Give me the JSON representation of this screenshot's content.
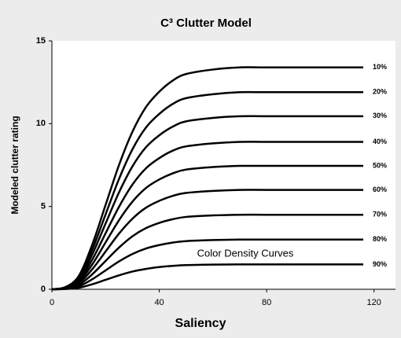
{
  "chart_data": {
    "type": "line",
    "title": "C³ Clutter Model",
    "x_label": "Saliency",
    "y_label": "Modeled clutter rating",
    "annotation": "Color Density Curves",
    "x": [
      0,
      5,
      10,
      15,
      20,
      25,
      30,
      35,
      40,
      45,
      50,
      60,
      70,
      80,
      100,
      116
    ],
    "xlim": [
      0,
      128
    ],
    "xticks": [
      0,
      40,
      80,
      120
    ],
    "ylim": [
      0,
      15
    ],
    "yticks": [
      0,
      5,
      10,
      15
    ],
    "grid": false,
    "series": [
      {
        "name": "10%",
        "color": "#000000",
        "values": [
          0,
          0.13,
          0.8,
          2.68,
          5.09,
          7.5,
          9.51,
          10.99,
          11.93,
          12.6,
          13.0,
          13.27,
          13.4,
          13.4,
          13.4,
          13.4
        ]
      },
      {
        "name": "20%",
        "color": "#000000",
        "values": [
          0,
          0.12,
          0.71,
          2.38,
          4.52,
          6.66,
          8.45,
          9.76,
          10.59,
          11.19,
          11.54,
          11.78,
          11.9,
          11.9,
          11.9,
          11.9
        ]
      },
      {
        "name": "30%",
        "color": "#000000",
        "values": [
          0,
          0.1,
          0.63,
          2.09,
          3.97,
          5.85,
          7.42,
          8.57,
          9.3,
          9.82,
          10.14,
          10.35,
          10.45,
          10.45,
          10.45,
          10.45
        ]
      },
      {
        "name": "40%",
        "color": "#000000",
        "values": [
          0,
          0.09,
          0.53,
          1.78,
          3.38,
          4.98,
          6.32,
          7.3,
          7.92,
          8.37,
          8.63,
          8.81,
          8.9,
          8.9,
          8.9,
          8.9
        ]
      },
      {
        "name": "50%",
        "color": "#000000",
        "values": [
          0,
          0.07,
          0.45,
          1.49,
          2.83,
          4.17,
          5.29,
          6.11,
          6.63,
          7.0,
          7.23,
          7.38,
          7.45,
          7.45,
          7.45,
          7.45
        ]
      },
      {
        "name": "60%",
        "color": "#000000",
        "values": [
          0,
          0.06,
          0.36,
          1.2,
          2.28,
          3.36,
          4.26,
          4.92,
          5.34,
          5.64,
          5.82,
          5.94,
          6.0,
          6.0,
          6.0,
          6.0
        ]
      },
      {
        "name": "70%",
        "color": "#000000",
        "values": [
          0,
          0.05,
          0.27,
          0.9,
          1.71,
          2.52,
          3.2,
          3.69,
          4.01,
          4.23,
          4.37,
          4.46,
          4.5,
          4.5,
          4.5,
          4.5
        ]
      },
      {
        "name": "80%",
        "color": "#000000",
        "values": [
          0,
          0.03,
          0.18,
          0.6,
          1.14,
          1.68,
          2.13,
          2.46,
          2.67,
          2.82,
          2.91,
          2.97,
          3.0,
          3.0,
          3.0,
          3.0
        ]
      },
      {
        "name": "90%",
        "color": "#000000",
        "values": [
          0,
          0.02,
          0.09,
          0.3,
          0.57,
          0.84,
          1.07,
          1.23,
          1.34,
          1.41,
          1.46,
          1.49,
          1.5,
          1.5,
          1.5,
          1.5
        ]
      }
    ]
  }
}
